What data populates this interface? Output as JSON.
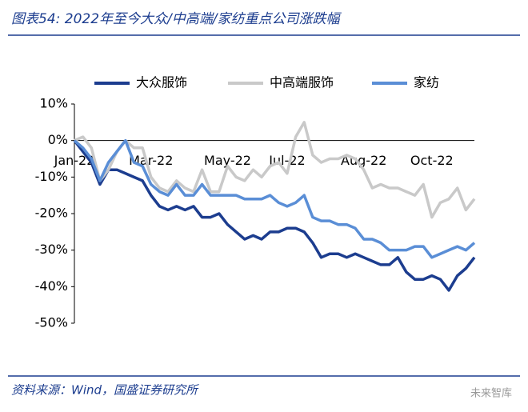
{
  "chart_data": {
    "type": "line",
    "title": "图表54:  2022年至今大众/中高端/家纺重点公司涨跌幅",
    "source": "资料来源：Wind，国盛证券研究所",
    "watermark": "未来智库",
    "categories": [
      "Jan-22",
      null,
      null,
      null,
      null,
      null,
      null,
      null,
      null,
      "Mar-22",
      null,
      null,
      null,
      null,
      null,
      null,
      null,
      null,
      "May-22",
      null,
      null,
      null,
      null,
      null,
      null,
      "Jul-22",
      null,
      null,
      null,
      null,
      null,
      null,
      null,
      null,
      "Aug-22",
      null,
      null,
      null,
      null,
      null,
      null,
      null,
      "Oct-22",
      null,
      null,
      null,
      null,
      null
    ],
    "series": [
      {
        "name": "大众服饰",
        "color": "#1c3d8f",
        "values": [
          0,
          -3,
          -6,
          -12,
          -8,
          -8,
          -9,
          -10,
          -11,
          -15,
          -18,
          -19,
          -18,
          -19,
          -18,
          -21,
          -21,
          -20,
          -23,
          -25,
          -27,
          -26,
          -27,
          -25,
          -25,
          -24,
          -24,
          -25,
          -28,
          -32,
          -31,
          -31,
          -32,
          -31,
          -32,
          -33,
          -34,
          -34,
          -32,
          -36,
          -38,
          -38,
          -37,
          -38,
          -41,
          -37,
          -35,
          -32
        ]
      },
      {
        "name": "中高端服饰",
        "color": "#c9c9c9",
        "values": [
          0,
          1,
          -2,
          -11,
          -8,
          -3,
          0,
          -2,
          -2,
          -10,
          -13,
          -14,
          -11,
          -13,
          -14,
          -8,
          -14,
          -14,
          -7,
          -10,
          -11,
          -8,
          -10,
          -7,
          -6,
          -9,
          1,
          5,
          -4,
          -6,
          -5,
          -5,
          -4,
          -5,
          -8,
          -13,
          -12,
          -13,
          -13,
          -14,
          -15,
          -12,
          -21,
          -17,
          -16,
          -13,
          -19,
          -16
        ]
      },
      {
        "name": "家纺",
        "color": "#5a8ed6",
        "values": [
          0,
          -2,
          -5,
          -11,
          -6,
          -3,
          0,
          -6,
          -7,
          -12,
          -14,
          -15,
          -12,
          -15,
          -15,
          -12,
          -15,
          -15,
          -15,
          -15,
          -16,
          -16,
          -16,
          -15,
          -17,
          -18,
          -17,
          -15,
          -21,
          -22,
          -22,
          -23,
          -23,
          -24,
          -27,
          -27,
          -28,
          -30,
          -30,
          -30,
          -29,
          -29,
          -32,
          -31,
          -30,
          -29,
          -30,
          -28
        ]
      }
    ],
    "ylim": [
      -50,
      10
    ],
    "yticks": [
      {
        "value": 10,
        "label": "10%"
      },
      {
        "value": 0,
        "label": "0%"
      },
      {
        "value": -10,
        "label": "-10%"
      },
      {
        "value": -20,
        "label": "-20%"
      },
      {
        "value": -30,
        "label": "-30%"
      },
      {
        "value": -40,
        "label": "-40%"
      },
      {
        "value": -50,
        "label": "-50%"
      }
    ]
  }
}
